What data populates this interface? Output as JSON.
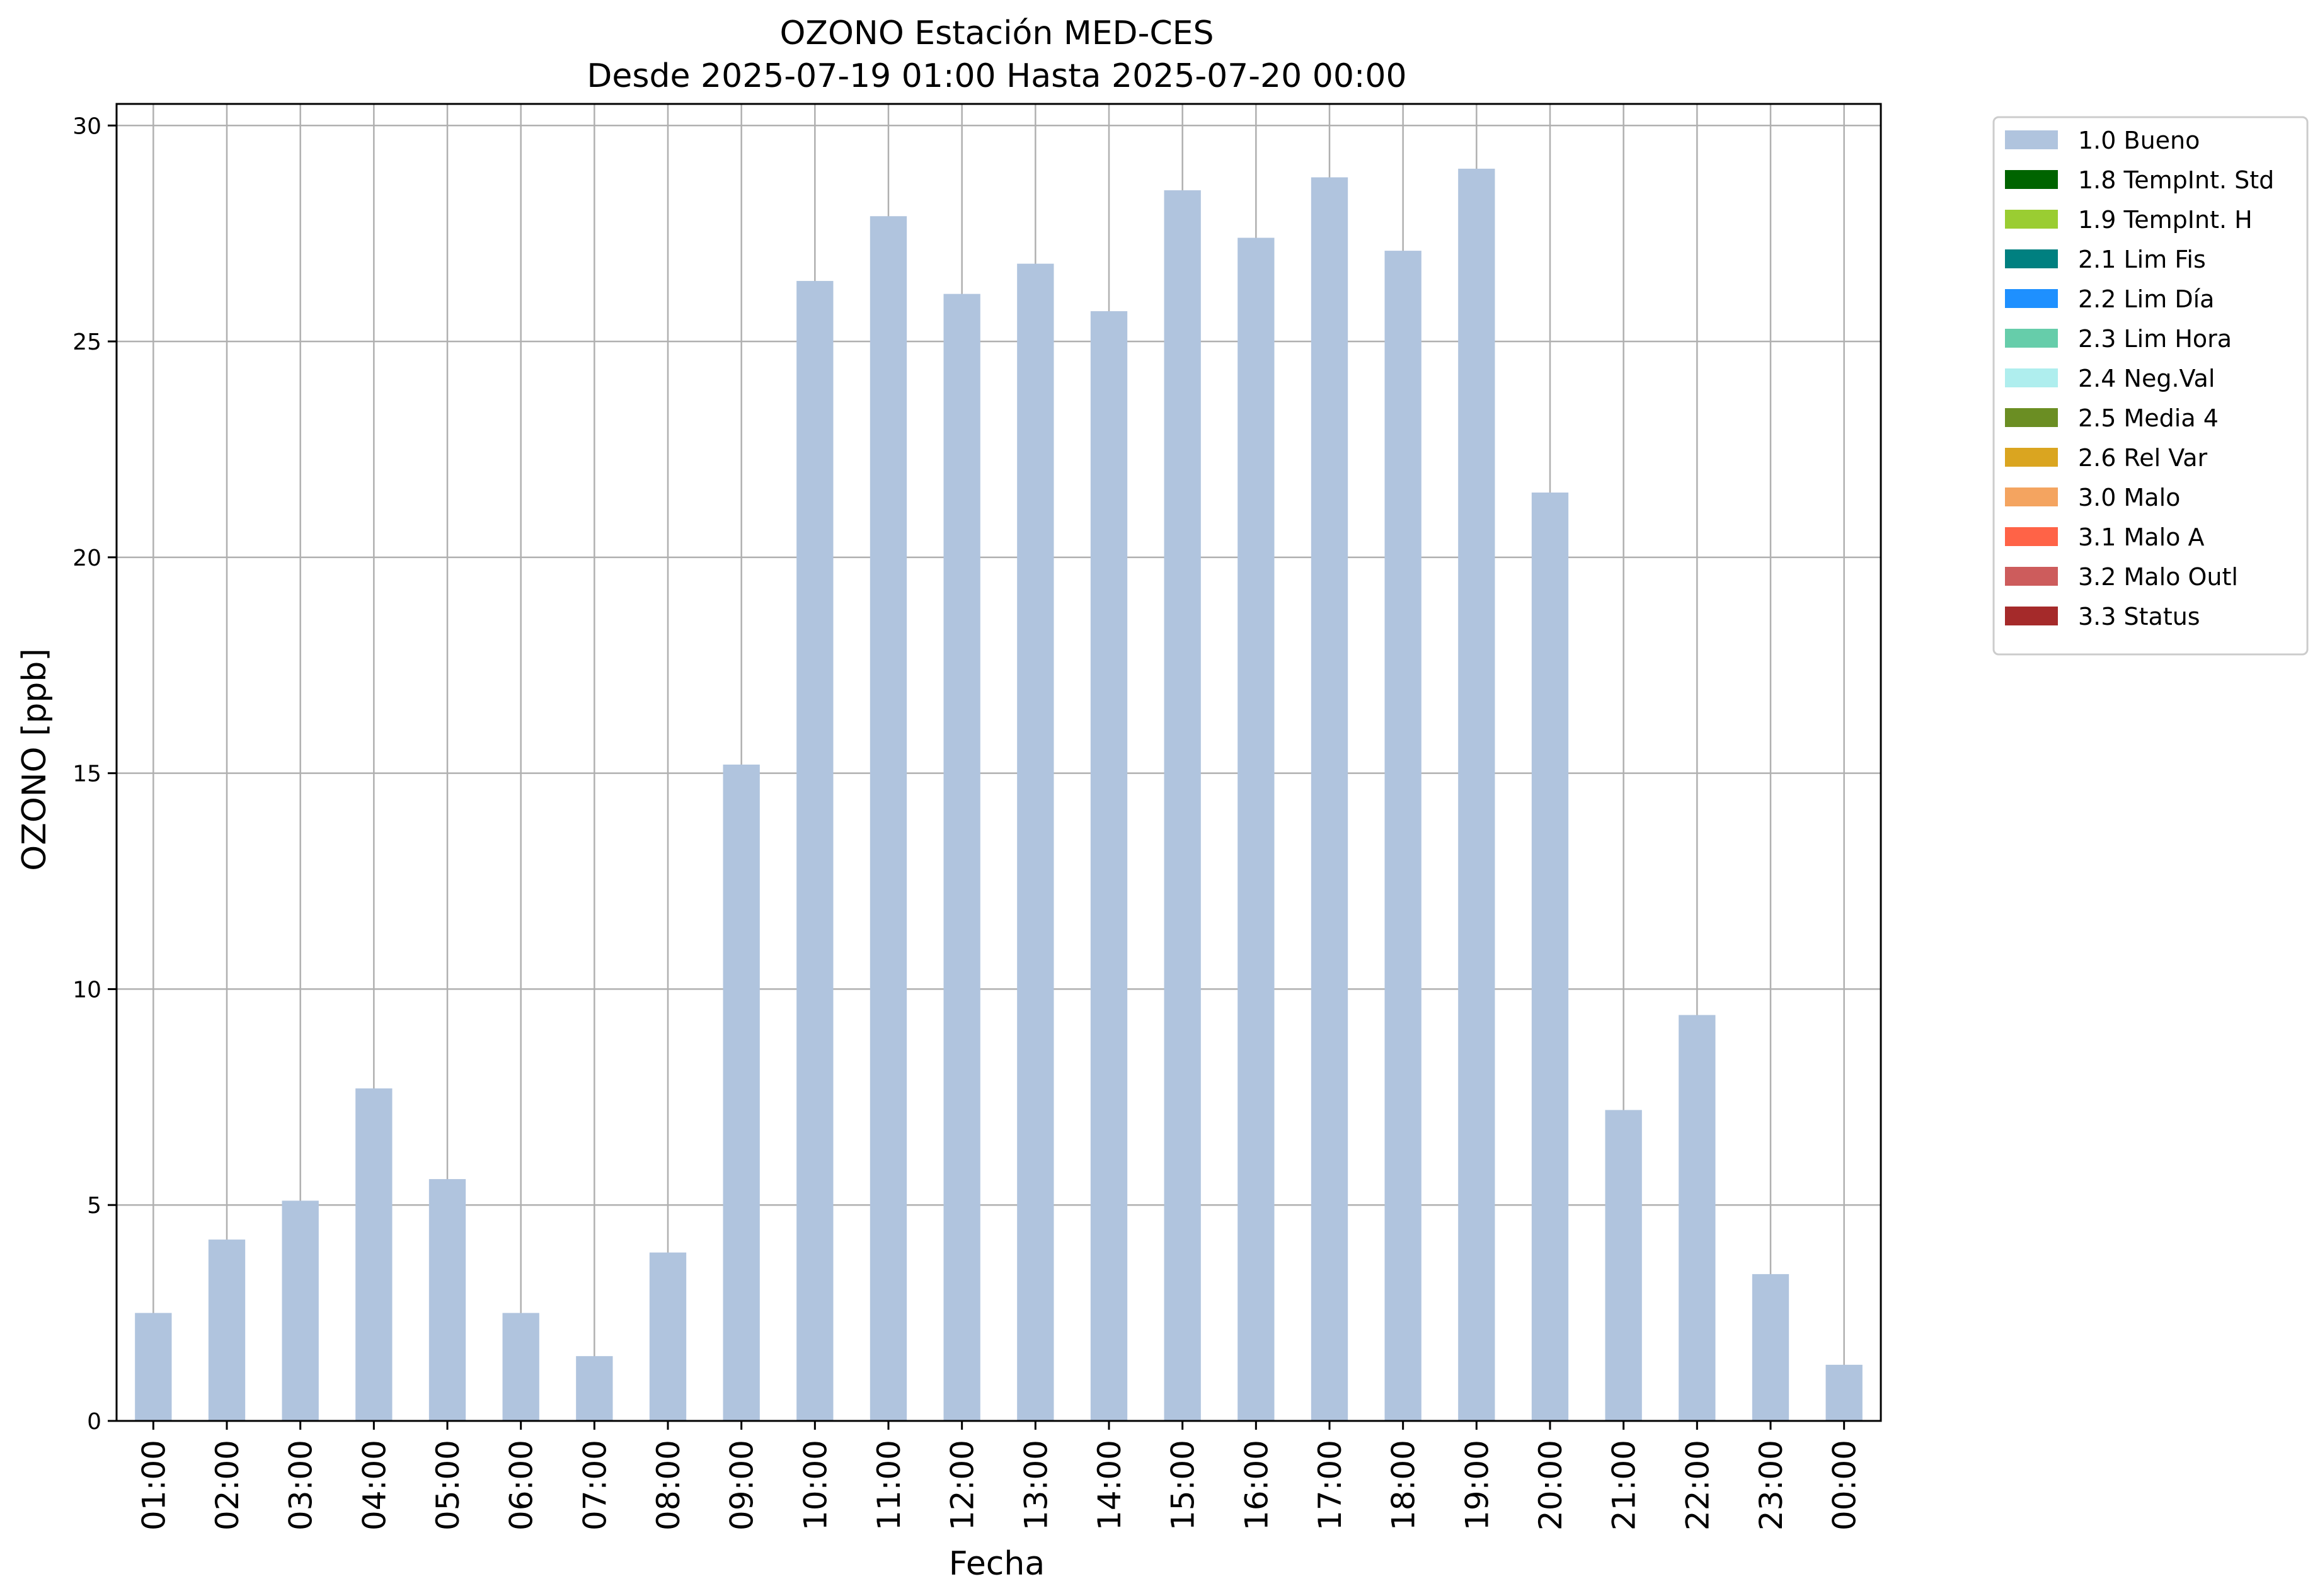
{
  "chart_data": {
    "type": "bar",
    "title_line1": "OZONO Estación MED-CES",
    "title_line2": "Desde 2025-07-19 01:00 Hasta 2025-07-20 00:00",
    "xlabel": "Fecha",
    "ylabel": "OZONO [ppb]",
    "ylim": [
      0,
      30.5
    ],
    "yticks": [
      "0",
      "5",
      "10",
      "15",
      "20",
      "25",
      "30"
    ],
    "grid": true,
    "legend_position": "outside-top-right",
    "categories": [
      "01:00",
      "02:00",
      "03:00",
      "04:00",
      "05:00",
      "06:00",
      "07:00",
      "08:00",
      "09:00",
      "10:00",
      "11:00",
      "12:00",
      "13:00",
      "14:00",
      "15:00",
      "16:00",
      "17:00",
      "18:00",
      "19:00",
      "20:00",
      "21:00",
      "22:00",
      "23:00",
      "00:00"
    ],
    "series": [
      {
        "name": "1.0 Bueno",
        "color": "#b0c4de",
        "values": [
          2.5,
          4.2,
          5.1,
          7.7,
          5.6,
          2.5,
          1.5,
          3.9,
          15.2,
          26.4,
          27.9,
          26.1,
          26.8,
          25.7,
          28.5,
          27.4,
          28.8,
          27.1,
          29.0,
          21.5,
          7.2,
          9.4,
          3.4,
          1.3
        ]
      }
    ],
    "legend": [
      {
        "label": "1.0 Bueno",
        "color": "#b0c4de"
      },
      {
        "label": "1.8 TempInt. Std",
        "color": "#006400"
      },
      {
        "label": "1.9 TempInt. H",
        "color": "#9acd32"
      },
      {
        "label": "2.1 Lim Fis",
        "color": "#008080"
      },
      {
        "label": "2.2 Lim Día",
        "color": "#1e90ff"
      },
      {
        "label": "2.3 Lim Hora",
        "color": "#66cdaa"
      },
      {
        "label": "2.4 Neg.Val",
        "color": "#afeeee"
      },
      {
        "label": "2.5 Media 4",
        "color": "#6b8e23"
      },
      {
        "label": "2.6 Rel Var",
        "color": "#daa520"
      },
      {
        "label": "3.0 Malo",
        "color": "#f4a460"
      },
      {
        "label": "3.1 Malo A",
        "color": "#ff6347"
      },
      {
        "label": "3.2 Malo Outl",
        "color": "#cd5c5c"
      },
      {
        "label": "3.3 Status",
        "color": "#a52a2a"
      }
    ]
  }
}
